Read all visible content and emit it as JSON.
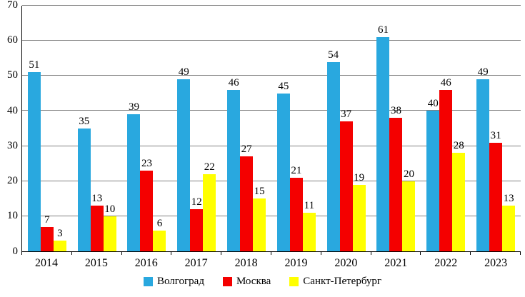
{
  "chart_data": {
    "type": "bar",
    "title": "",
    "xlabel": "",
    "ylabel": "",
    "categories": [
      "2014",
      "2015",
      "2016",
      "2017",
      "2018",
      "2019",
      "2020",
      "2021",
      "2022",
      "2023"
    ],
    "series": [
      {
        "name": "Волгоград",
        "color": "#29A8DF",
        "values": [
          51,
          35,
          39,
          49,
          46,
          45,
          54,
          61,
          40,
          49
        ]
      },
      {
        "name": "Москва",
        "color": "#F40000",
        "values": [
          7,
          13,
          23,
          12,
          27,
          21,
          37,
          38,
          46,
          31
        ]
      },
      {
        "name": "Санкт-Петербург",
        "color": "#FFFF00",
        "values": [
          3,
          10,
          6,
          22,
          15,
          11,
          19,
          20,
          28,
          13
        ]
      }
    ],
    "ylim": [
      0,
      70
    ],
    "ytick_step": 10,
    "yticks": [
      "0",
      "10",
      "20",
      "30",
      "40",
      "50",
      "60",
      "70"
    ],
    "grid": "horizontal",
    "legend_position": "bottom",
    "data_labels": true
  }
}
